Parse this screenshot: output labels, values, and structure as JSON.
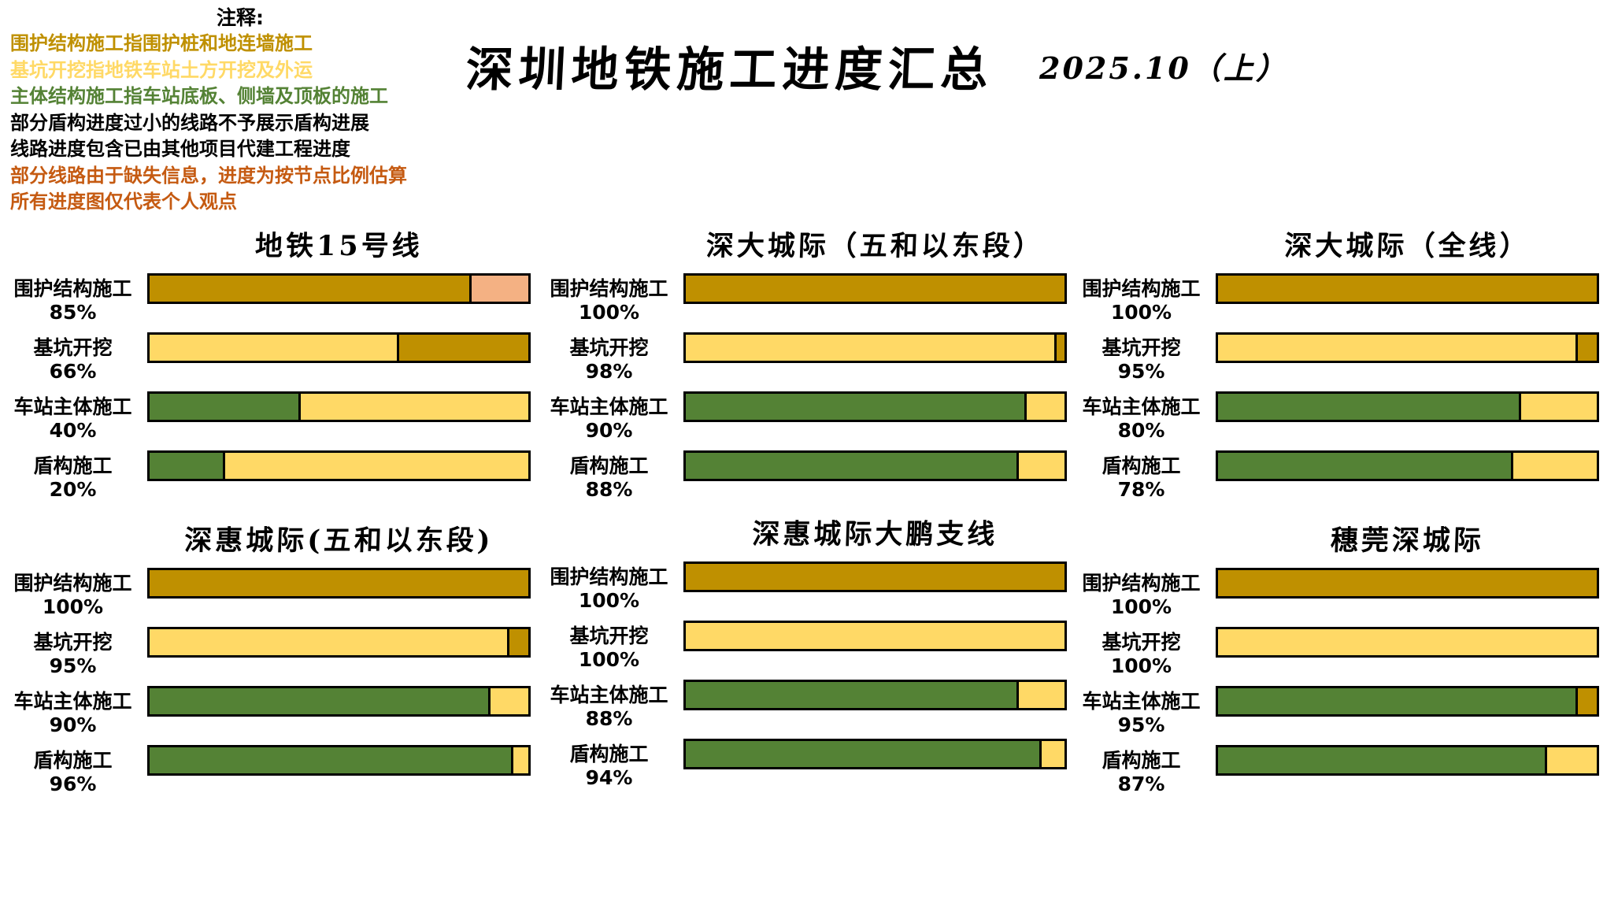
{
  "notes": {
    "header": "注释:",
    "lines": [
      {
        "text": "围护结构施工指围护桩和地连墙施工",
        "color": "#BF9000"
      },
      {
        "text": "基坑开挖指地铁车站土方开挖及外运",
        "color": "#FFD966"
      },
      {
        "text": "主体结构施工指车站底板、侧墙及顶板的施工",
        "color": "#548235"
      },
      {
        "text": "部分盾构进度过小的线路不予展示盾构进展",
        "color": "#000000"
      },
      {
        "text": "线路进度包含已由其他项目代建工程进度",
        "color": "#000000"
      },
      {
        "text": "部分线路由于缺失信息，进度为按节点比例估算",
        "color": "#C55A11"
      },
      {
        "text": "所有进度图仅代表个人观点",
        "color": "#C55A11"
      }
    ]
  },
  "title": {
    "main": "深圳地铁施工进度汇总",
    "date": "2025.10（上）"
  },
  "chart_data": {
    "type": "bar",
    "orientation": "horizontal",
    "unit": "%",
    "xlim": [
      0,
      100
    ],
    "grid": false,
    "legend_position": "none",
    "stages": [
      {
        "name": "围护结构施工",
        "fill": "#BF9000",
        "remainder": "#F4B183"
      },
      {
        "name": "基坑开挖",
        "fill": "#FFD966",
        "remainder": "#BF9000"
      },
      {
        "name": "车站主体施工",
        "fill": "#548235",
        "remainder": "#FFD966"
      },
      {
        "name": "盾构施工",
        "fill": "#548235",
        "remainder": "#FFD966"
      }
    ],
    "charts": [
      {
        "title": "地铁15号线",
        "categories": [
          "围护结构施工",
          "基坑开挖",
          "车站主体施工",
          "盾构施工"
        ],
        "values": [
          85,
          66,
          40,
          20
        ]
      },
      {
        "title": "深大城际（五和以东段）",
        "categories": [
          "围护结构施工",
          "基坑开挖",
          "车站主体施工",
          "盾构施工"
        ],
        "values": [
          100,
          98,
          90,
          88
        ]
      },
      {
        "title": "深大城际（全线）",
        "categories": [
          "围护结构施工",
          "基坑开挖",
          "车站主体施工",
          "盾构施工"
        ],
        "values": [
          100,
          95,
          80,
          78
        ]
      },
      {
        "title": "深惠城际(五和以东段)",
        "categories": [
          "围护结构施工",
          "基坑开挖",
          "车站主体施工",
          "盾构施工"
        ],
        "values": [
          100,
          95,
          90,
          96
        ]
      },
      {
        "title": "深惠城际大鹏支线",
        "categories": [
          "围护结构施工",
          "基坑开挖",
          "车站主体施工",
          "盾构施工"
        ],
        "values": [
          100,
          100,
          88,
          94
        ]
      },
      {
        "title": "穗莞深城际",
        "categories": [
          "围护结构施工",
          "基坑开挖",
          "车站主体施工",
          "盾构施工"
        ],
        "values": [
          100,
          100,
          95,
          87
        ],
        "remainder_overrides": {
          "2": "#BF9000"
        }
      }
    ]
  }
}
